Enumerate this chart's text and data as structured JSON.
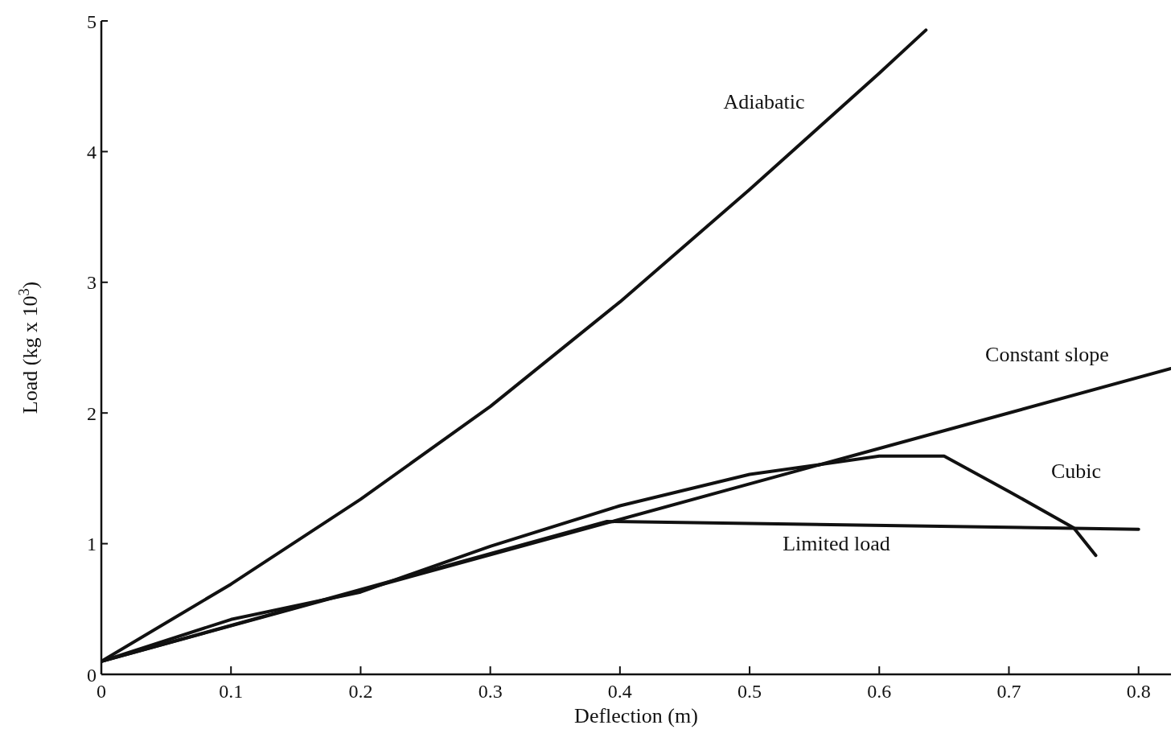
{
  "chart_data": {
    "type": "line",
    "xlabel": "Deflection (m)",
    "ylabel": "Load (kg x 10$^{3}$)",
    "xlim": [
      0,
      0.825
    ],
    "xticks": [
      0,
      0.1,
      0.2,
      0.3,
      0.4,
      0.5,
      0.6,
      0.7,
      0.8
    ],
    "ylim": [
      0,
      5
    ],
    "yticks": [
      0,
      1,
      2,
      3,
      4,
      5
    ],
    "grid": false,
    "legend": false,
    "marker": "none",
    "line_style": "solid",
    "series": [
      {
        "name": "Adiabatic",
        "color": "#111111",
        "x": [
          0,
          0.1,
          0.2,
          0.3,
          0.4,
          0.5,
          0.6,
          0.636
        ],
        "values": [
          0.1,
          0.69,
          1.34,
          2.05,
          2.85,
          3.71,
          4.6,
          4.93
        ]
      },
      {
        "name": "Constant slope",
        "color": "#111111",
        "x": [
          0,
          0.825
        ],
        "values": [
          0.1,
          2.34
        ]
      },
      {
        "name": "Cubic",
        "color": "#111111",
        "x": [
          0,
          0.1,
          0.2,
          0.3,
          0.4,
          0.5,
          0.6,
          0.65,
          0.7,
          0.75,
          0.767
        ],
        "values": [
          0.1,
          0.42,
          0.63,
          0.98,
          1.29,
          1.53,
          1.67,
          1.67,
          1.4,
          1.12,
          0.91
        ]
      },
      {
        "name": "Limited load",
        "color": "#111111",
        "x": [
          0,
          0.39,
          0.8
        ],
        "values": [
          0.1,
          1.17,
          1.11
        ]
      }
    ]
  }
}
